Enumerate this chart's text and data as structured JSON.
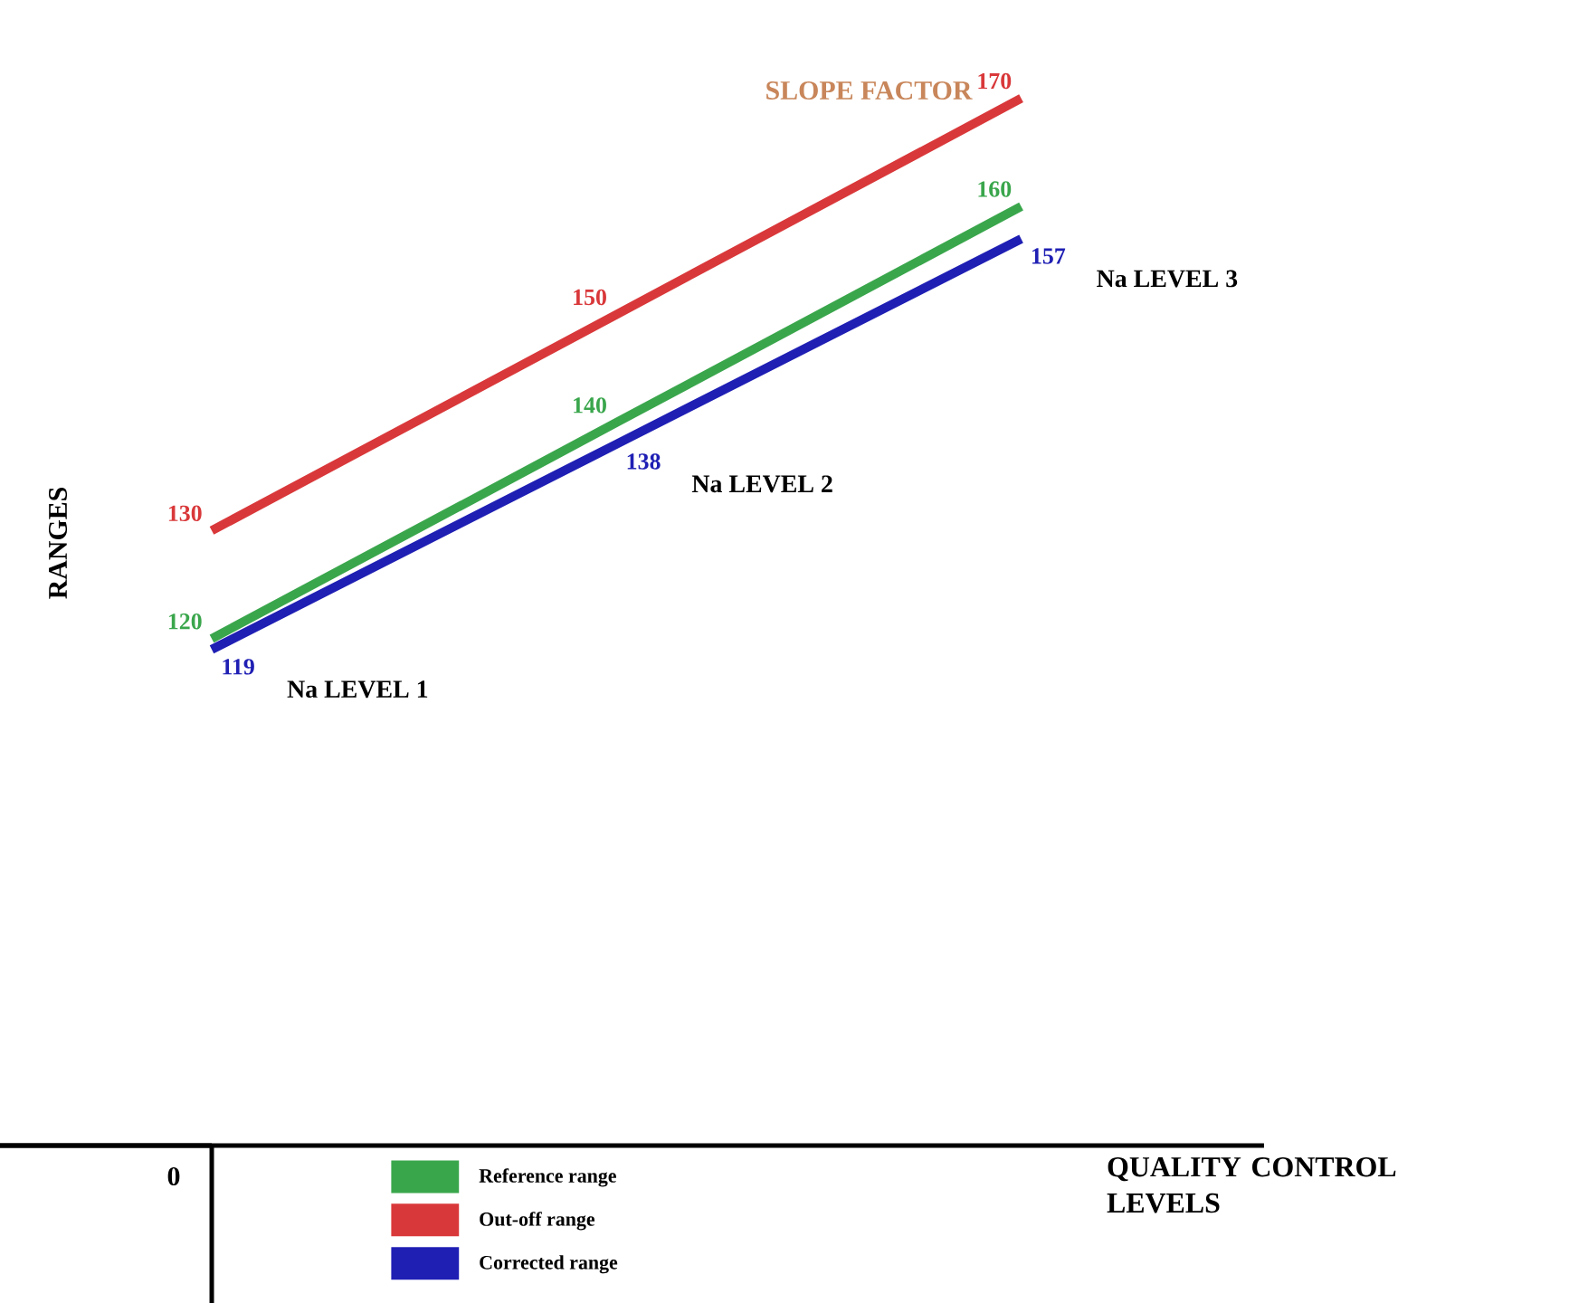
{
  "chart_data": {
    "type": "line",
    "title": "SLOPE FACTOR",
    "ylabel": "RANGES",
    "categories": [
      "Na LEVEL 1",
      "Na LEVEL 2",
      "Na LEVEL 3"
    ],
    "series": [
      {
        "name": "Reference range",
        "color": "#3aa64c",
        "values": [
          120,
          140,
          160
        ]
      },
      {
        "name": "Out-off range",
        "color": "#d9383a",
        "values": [
          130,
          150,
          170
        ]
      },
      {
        "name": "Corrected range",
        "color": "#1f1fb4",
        "values": [
          119,
          138,
          157
        ]
      }
    ],
    "data_labels": true,
    "legend": "bottom",
    "tick_labels": false,
    "annotations": [
      "0",
      "QUALITY CONTROL LEVELS"
    ]
  }
}
